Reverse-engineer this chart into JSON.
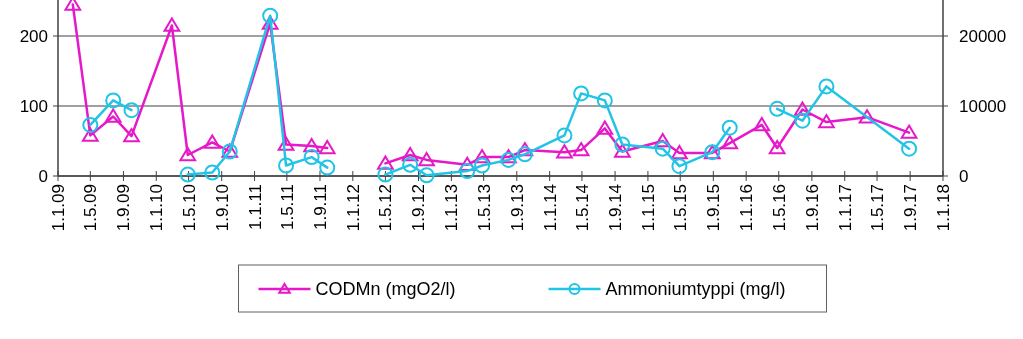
{
  "chart_data": {
    "type": "line",
    "ylim": [
      0,
      250
    ],
    "yticks": [
      0,
      100,
      200
    ],
    "y2lim": [
      0,
      25000
    ],
    "y2ticks": [
      0,
      10000,
      20000
    ],
    "xlim": [
      "2009-01-01",
      "2018-01-01"
    ],
    "xticks": [
      {
        "value": "2009-01-01",
        "label": "1.1.09"
      },
      {
        "value": "2009-05-01",
        "label": "1.5.09"
      },
      {
        "value": "2009-09-01",
        "label": "1.9.09"
      },
      {
        "value": "2010-01-01",
        "label": "1.1.10"
      },
      {
        "value": "2010-05-01",
        "label": "1.5.10"
      },
      {
        "value": "2010-09-01",
        "label": "1.9.10"
      },
      {
        "value": "2011-01-01",
        "label": "1.1.11"
      },
      {
        "value": "2011-05-01",
        "label": "1.5.11"
      },
      {
        "value": "2011-09-01",
        "label": "1.9.11"
      },
      {
        "value": "2012-01-01",
        "label": "1.1.12"
      },
      {
        "value": "2012-05-01",
        "label": "1.5.12"
      },
      {
        "value": "2012-09-01",
        "label": "1.9.12"
      },
      {
        "value": "2013-01-01",
        "label": "1.1.13"
      },
      {
        "value": "2013-05-01",
        "label": "1.5.13"
      },
      {
        "value": "2013-09-01",
        "label": "1.9.13"
      },
      {
        "value": "2014-01-01",
        "label": "1.1.14"
      },
      {
        "value": "2014-05-01",
        "label": "1.5.14"
      },
      {
        "value": "2014-09-01",
        "label": "1.9.14"
      },
      {
        "value": "2015-01-01",
        "label": "1.1.15"
      },
      {
        "value": "2015-05-01",
        "label": "1.5.15"
      },
      {
        "value": "2015-09-01",
        "label": "1.9.15"
      },
      {
        "value": "2016-01-01",
        "label": "1.1.16"
      },
      {
        "value": "2016-05-01",
        "label": "1.5.16"
      },
      {
        "value": "2016-09-01",
        "label": "1.9.16"
      },
      {
        "value": "2017-01-01",
        "label": "1.1.17"
      },
      {
        "value": "2017-05-01",
        "label": "1.5.17"
      },
      {
        "value": "2017-09-01",
        "label": "1.9.17"
      },
      {
        "value": "2018-01-01",
        "label": "1.1.18"
      }
    ],
    "grid": "y",
    "legend": "bottom",
    "line_style": "solid",
    "series": [
      {
        "name": "CODMn (mgO2/l)",
        "color": "#e619c8",
        "marker": "triangle",
        "x": [
          "2009-02-25",
          "2009-05-01",
          "2009-07-25",
          "2009-10-01",
          "2010-02-28",
          "2010-04-28",
          "2010-07-28",
          "2010-10-01",
          "2011-02-28",
          "2011-04-28",
          "2011-08-01",
          "2011-09-28",
          "2012-02-15",
          "2012-05-01",
          "2012-08-01",
          "2012-10-01",
          "2013-03-01",
          "2013-04-25",
          "2013-08-01",
          "2013-10-01",
          "2014-02-25",
          "2014-04-28",
          "2014-07-25",
          "2014-09-28",
          "2015-02-25",
          "2015-04-28",
          "2015-08-28",
          "2015-11-01",
          "2016-02-28",
          "2016-04-25",
          "2016-07-28",
          "2016-10-25",
          "2017-03-25",
          "2017-08-28"
        ],
        "values": [
          245,
          58,
          85,
          57,
          215,
          30,
          48,
          35,
          218,
          45,
          43,
          40,
          null,
          18,
          30,
          23,
          16,
          27,
          27,
          37,
          34,
          37,
          68,
          35,
          50,
          33,
          33,
          47,
          73,
          40,
          95,
          77,
          84,
          62
        ]
      },
      {
        "name": "Ammoniumtyppi (mg/l)",
        "color": "#22c4e6",
        "marker": "circle",
        "axis": "y2",
        "x": [
          "2009-05-01",
          "2009-07-25",
          "2009-10-01",
          "2010-02-10",
          "2010-04-28",
          "2010-07-28",
          "2010-10-01",
          "2011-02-28",
          "2011-04-28",
          "2011-08-01",
          "2011-09-28",
          "2012-02-20",
          "2012-05-01",
          "2012-08-01",
          "2012-10-01",
          "2013-03-01",
          "2013-04-25",
          "2013-08-01",
          "2013-10-01",
          "2014-02-25",
          "2014-04-28",
          "2014-07-25",
          "2014-09-28",
          "2015-02-25",
          "2015-04-28",
          "2015-08-28",
          "2015-11-01",
          "2016-03-10",
          "2016-04-25",
          "2016-07-28",
          "2016-10-25",
          "2017-08-28"
        ],
        "values": [
          7300,
          10800,
          9400,
          null,
          200,
          500,
          3500,
          22900,
          1500,
          2700,
          1200,
          null,
          200,
          1600,
          100,
          700,
          1500,
          2300,
          3100,
          5800,
          11800,
          10800,
          4500,
          3900,
          1400,
          3400,
          6900,
          null,
          9600,
          7900,
          12800,
          3900
        ]
      }
    ]
  }
}
